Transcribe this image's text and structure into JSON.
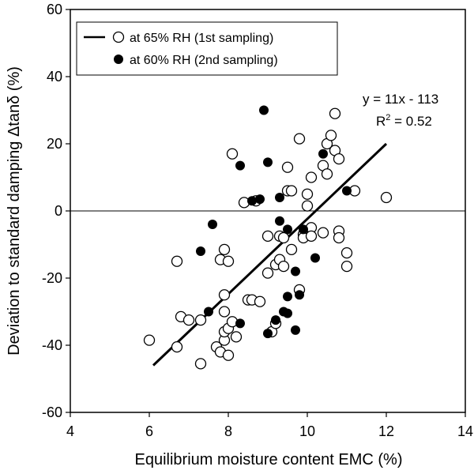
{
  "chart_data": {
    "type": "scatter",
    "xlabel": "Equilibrium moisture content EMC (%)",
    "ylabel": "Deviation to standard damping Δtanδ (%)",
    "xlim": [
      4,
      14
    ],
    "ylim": [
      -60,
      60
    ],
    "xticks": [
      "4",
      "6",
      "8",
      "10",
      "12",
      "14"
    ],
    "yticks": [
      "60",
      "40",
      "20",
      "0",
      "-20",
      "-40",
      "-60"
    ],
    "grid": false,
    "legend_position": "top-left",
    "fit": {
      "equation": "y = 11x - 113",
      "r2_prefix": "R",
      "r2_exp": "2",
      "r2_suffix": " = 0.52",
      "x": [
        6.1,
        12.0
      ],
      "y": [
        -46,
        20
      ]
    },
    "series": [
      {
        "name": "at 65% RH (1st sampling)",
        "marker": "open-circle",
        "color": "#000000",
        "points": [
          [
            6.0,
            -38.5
          ],
          [
            6.7,
            -40.5
          ],
          [
            6.7,
            -15
          ],
          [
            6.8,
            -31.5
          ],
          [
            7.0,
            -32.5
          ],
          [
            7.3,
            -32.5
          ],
          [
            7.3,
            -45.5
          ],
          [
            7.7,
            -40.5
          ],
          [
            7.8,
            -14.5
          ],
          [
            7.8,
            -42
          ],
          [
            7.9,
            -38.5
          ],
          [
            7.9,
            -36
          ],
          [
            7.9,
            -30
          ],
          [
            7.9,
            -25
          ],
          [
            7.9,
            -11.5
          ],
          [
            8.0,
            -43
          ],
          [
            8.0,
            -35
          ],
          [
            8.0,
            -15
          ],
          [
            8.1,
            -33
          ],
          [
            8.1,
            17
          ],
          [
            8.2,
            -37.5
          ],
          [
            8.4,
            2.5
          ],
          [
            8.5,
            -26.5
          ],
          [
            8.6,
            -26.5
          ],
          [
            8.7,
            3
          ],
          [
            8.8,
            -27
          ],
          [
            9.0,
            -7.5
          ],
          [
            9.0,
            -18.5
          ],
          [
            9.1,
            -36
          ],
          [
            9.2,
            -33.5
          ],
          [
            9.2,
            -16
          ],
          [
            9.3,
            -7.5
          ],
          [
            9.3,
            -14.5
          ],
          [
            9.4,
            -16.5
          ],
          [
            9.4,
            -8
          ],
          [
            9.5,
            13
          ],
          [
            9.5,
            6
          ],
          [
            9.6,
            6
          ],
          [
            9.6,
            -11.5
          ],
          [
            9.8,
            21.5
          ],
          [
            9.8,
            -23.5
          ],
          [
            9.9,
            -7
          ],
          [
            9.9,
            -8
          ],
          [
            10.0,
            5
          ],
          [
            10.0,
            1.5
          ],
          [
            10.1,
            10
          ],
          [
            10.1,
            -5
          ],
          [
            10.1,
            -7.5
          ],
          [
            10.4,
            13.5
          ],
          [
            10.4,
            -6.5
          ],
          [
            10.5,
            20
          ],
          [
            10.5,
            11
          ],
          [
            10.6,
            22.5
          ],
          [
            10.7,
            18
          ],
          [
            10.7,
            29
          ],
          [
            10.8,
            15.5
          ],
          [
            10.8,
            -6
          ],
          [
            10.8,
            -8
          ],
          [
            11.0,
            -12.5
          ],
          [
            11.0,
            -16.5
          ],
          [
            11.2,
            6
          ],
          [
            12.0,
            4
          ]
        ]
      },
      {
        "name": "at 60% RH (2nd sampling)",
        "marker": "filled-circle",
        "color": "#000000",
        "points": [
          [
            7.3,
            -12
          ],
          [
            7.5,
            -30
          ],
          [
            7.6,
            -4
          ],
          [
            8.3,
            -33.5
          ],
          [
            8.3,
            13.5
          ],
          [
            8.6,
            3
          ],
          [
            8.8,
            3.5
          ],
          [
            8.9,
            30
          ],
          [
            9.0,
            14.5
          ],
          [
            9.0,
            -36.5
          ],
          [
            9.2,
            -32.5
          ],
          [
            9.3,
            -3
          ],
          [
            9.3,
            4
          ],
          [
            9.4,
            -30
          ],
          [
            9.5,
            -25.5
          ],
          [
            9.5,
            -30.5
          ],
          [
            9.5,
            -5.5
          ],
          [
            9.7,
            -35.5
          ],
          [
            9.7,
            -18
          ],
          [
            9.8,
            -25
          ],
          [
            9.9,
            -5.5
          ],
          [
            10.2,
            -14
          ],
          [
            10.4,
            17
          ],
          [
            11.0,
            6
          ]
        ]
      }
    ]
  }
}
